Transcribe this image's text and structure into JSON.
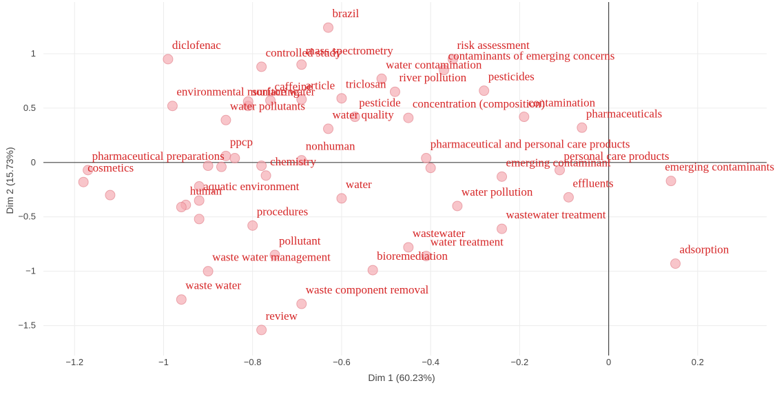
{
  "chart_data": {
    "type": "scatter",
    "title": "",
    "xlabel": "Dim 1 (60.23%)",
    "ylabel": "Dim 2 (15.73%)",
    "xlim": [
      -1.27,
      0.355
    ],
    "ylim": [
      -1.775,
      1.475
    ],
    "x_ticks": [
      -1.2,
      -1,
      -0.8,
      -0.6,
      -0.4,
      -0.2,
      0,
      0.2
    ],
    "x_tick_labels": [
      "−1.2",
      "−1",
      "−0.8",
      "−0.6",
      "−0.4",
      "−0.2",
      "0",
      "0.2"
    ],
    "y_ticks": [
      -1.5,
      -1,
      -0.5,
      0,
      0.5,
      1
    ],
    "y_tick_labels": [
      "−1.5",
      "−1",
      "−0.5",
      "0",
      "0.5",
      "1"
    ],
    "grid": true,
    "zero_lines": true,
    "legend": "none",
    "marker_color": "#f4a6ad",
    "marker_edge_color": "#e07a84",
    "label_color": "#d62728",
    "series": [
      {
        "points": [
          {
            "label": "brazil",
            "x": -0.63,
            "y": 1.24
          },
          {
            "label": "diclofenac",
            "x": -0.99,
            "y": 0.95
          },
          {
            "label": "controlled study",
            "x": -0.78,
            "y": 0.88
          },
          {
            "label": "mass spectrometry",
            "x": -0.69,
            "y": 0.9
          },
          {
            "label": "risk assessment",
            "x": -0.35,
            "y": 0.95
          },
          {
            "label": "contaminants of emerging concerns",
            "x": -0.37,
            "y": 0.85
          },
          {
            "label": "water contamination",
            "x": -0.51,
            "y": 0.77
          },
          {
            "label": "river pollution",
            "x": -0.48,
            "y": 0.65
          },
          {
            "label": "pesticides",
            "x": -0.28,
            "y": 0.66
          },
          {
            "label": "environmental monitoring",
            "x": -0.98,
            "y": 0.52
          },
          {
            "label": "caffeine",
            "x": -0.76,
            "y": 0.57
          },
          {
            "label": "article",
            "x": -0.69,
            "y": 0.58
          },
          {
            "label": "triclosan",
            "x": -0.6,
            "y": 0.59
          },
          {
            "label": "surface water",
            "x": -0.81,
            "y": 0.52
          },
          {
            "label": "pesticide",
            "x": -0.57,
            "y": 0.42
          },
          {
            "label": "concentration (composition)",
            "x": -0.45,
            "y": 0.41
          },
          {
            "label": "contamination",
            "x": -0.19,
            "y": 0.42
          },
          {
            "label": "water quality",
            "x": -0.63,
            "y": 0.31
          },
          {
            "label": "pharmaceuticals",
            "x": -0.06,
            "y": 0.32
          },
          {
            "label": "water pollutants",
            "x": -0.86,
            "y": 0.39
          },
          {
            "label": "ppcp",
            "x": -0.86,
            "y": 0.06
          },
          {
            "label": "pharmaceutical and personal care products",
            "x": -0.41,
            "y": 0.04
          },
          {
            "label": "nonhuman",
            "x": -0.69,
            "y": 0.02
          },
          {
            "label": "personal care products",
            "x": -0.11,
            "y": -0.07
          },
          {
            "label": "emerging contaminant",
            "x": -0.24,
            "y": -0.13
          },
          {
            "label": "emerging contaminants",
            "x": 0.14,
            "y": -0.17
          },
          {
            "label": "pharmaceutical preparations",
            "x": -1.17,
            "y": -0.07
          },
          {
            "label": "chemistry",
            "x": -0.77,
            "y": -0.12
          },
          {
            "label": "cosmetics",
            "x": -1.18,
            "y": -0.18
          },
          {
            "label": "water",
            "x": -0.6,
            "y": -0.33
          },
          {
            "label": "effluents",
            "x": -0.09,
            "y": -0.32
          },
          {
            "label": "water pollution",
            "x": -0.34,
            "y": -0.4
          },
          {
            "label": "aquatic environment",
            "x": -0.92,
            "y": -0.35
          },
          {
            "label": "human",
            "x": -0.95,
            "y": -0.39
          },
          {
            "label": "procedures",
            "x": -0.8,
            "y": -0.58
          },
          {
            "label": "wastewater treatment",
            "x": -0.24,
            "y": -0.61
          },
          {
            "label": "wastewater",
            "x": -0.45,
            "y": -0.78
          },
          {
            "label": "water treatment",
            "x": -0.41,
            "y": -0.86
          },
          {
            "label": "pollutant",
            "x": -0.75,
            "y": -0.85
          },
          {
            "label": "bioremediation",
            "x": -0.53,
            "y": -0.99
          },
          {
            "label": "waste water management",
            "x": -0.9,
            "y": -1.0
          },
          {
            "label": "adsorption",
            "x": 0.15,
            "y": -0.93
          },
          {
            "label": "waste water",
            "x": -0.96,
            "y": -1.26
          },
          {
            "label": "waste component removal",
            "x": -0.69,
            "y": -1.3
          },
          {
            "label": "review",
            "x": -0.78,
            "y": -1.54
          },
          {
            "label": "",
            "x": -0.9,
            "y": -0.03
          },
          {
            "label": "",
            "x": -0.87,
            "y": -0.04
          },
          {
            "label": "",
            "x": -0.84,
            "y": 0.04
          },
          {
            "label": "",
            "x": -0.78,
            "y": -0.03
          },
          {
            "label": "",
            "x": -0.4,
            "y": -0.05
          },
          {
            "label": "",
            "x": -1.12,
            "y": -0.3
          },
          {
            "label": "",
            "x": -0.92,
            "y": -0.22
          },
          {
            "label": "",
            "x": -0.96,
            "y": -0.41
          },
          {
            "label": "",
            "x": -0.92,
            "y": -0.52
          },
          {
            "label": "",
            "x": -0.81,
            "y": 0.56
          }
        ]
      }
    ]
  }
}
